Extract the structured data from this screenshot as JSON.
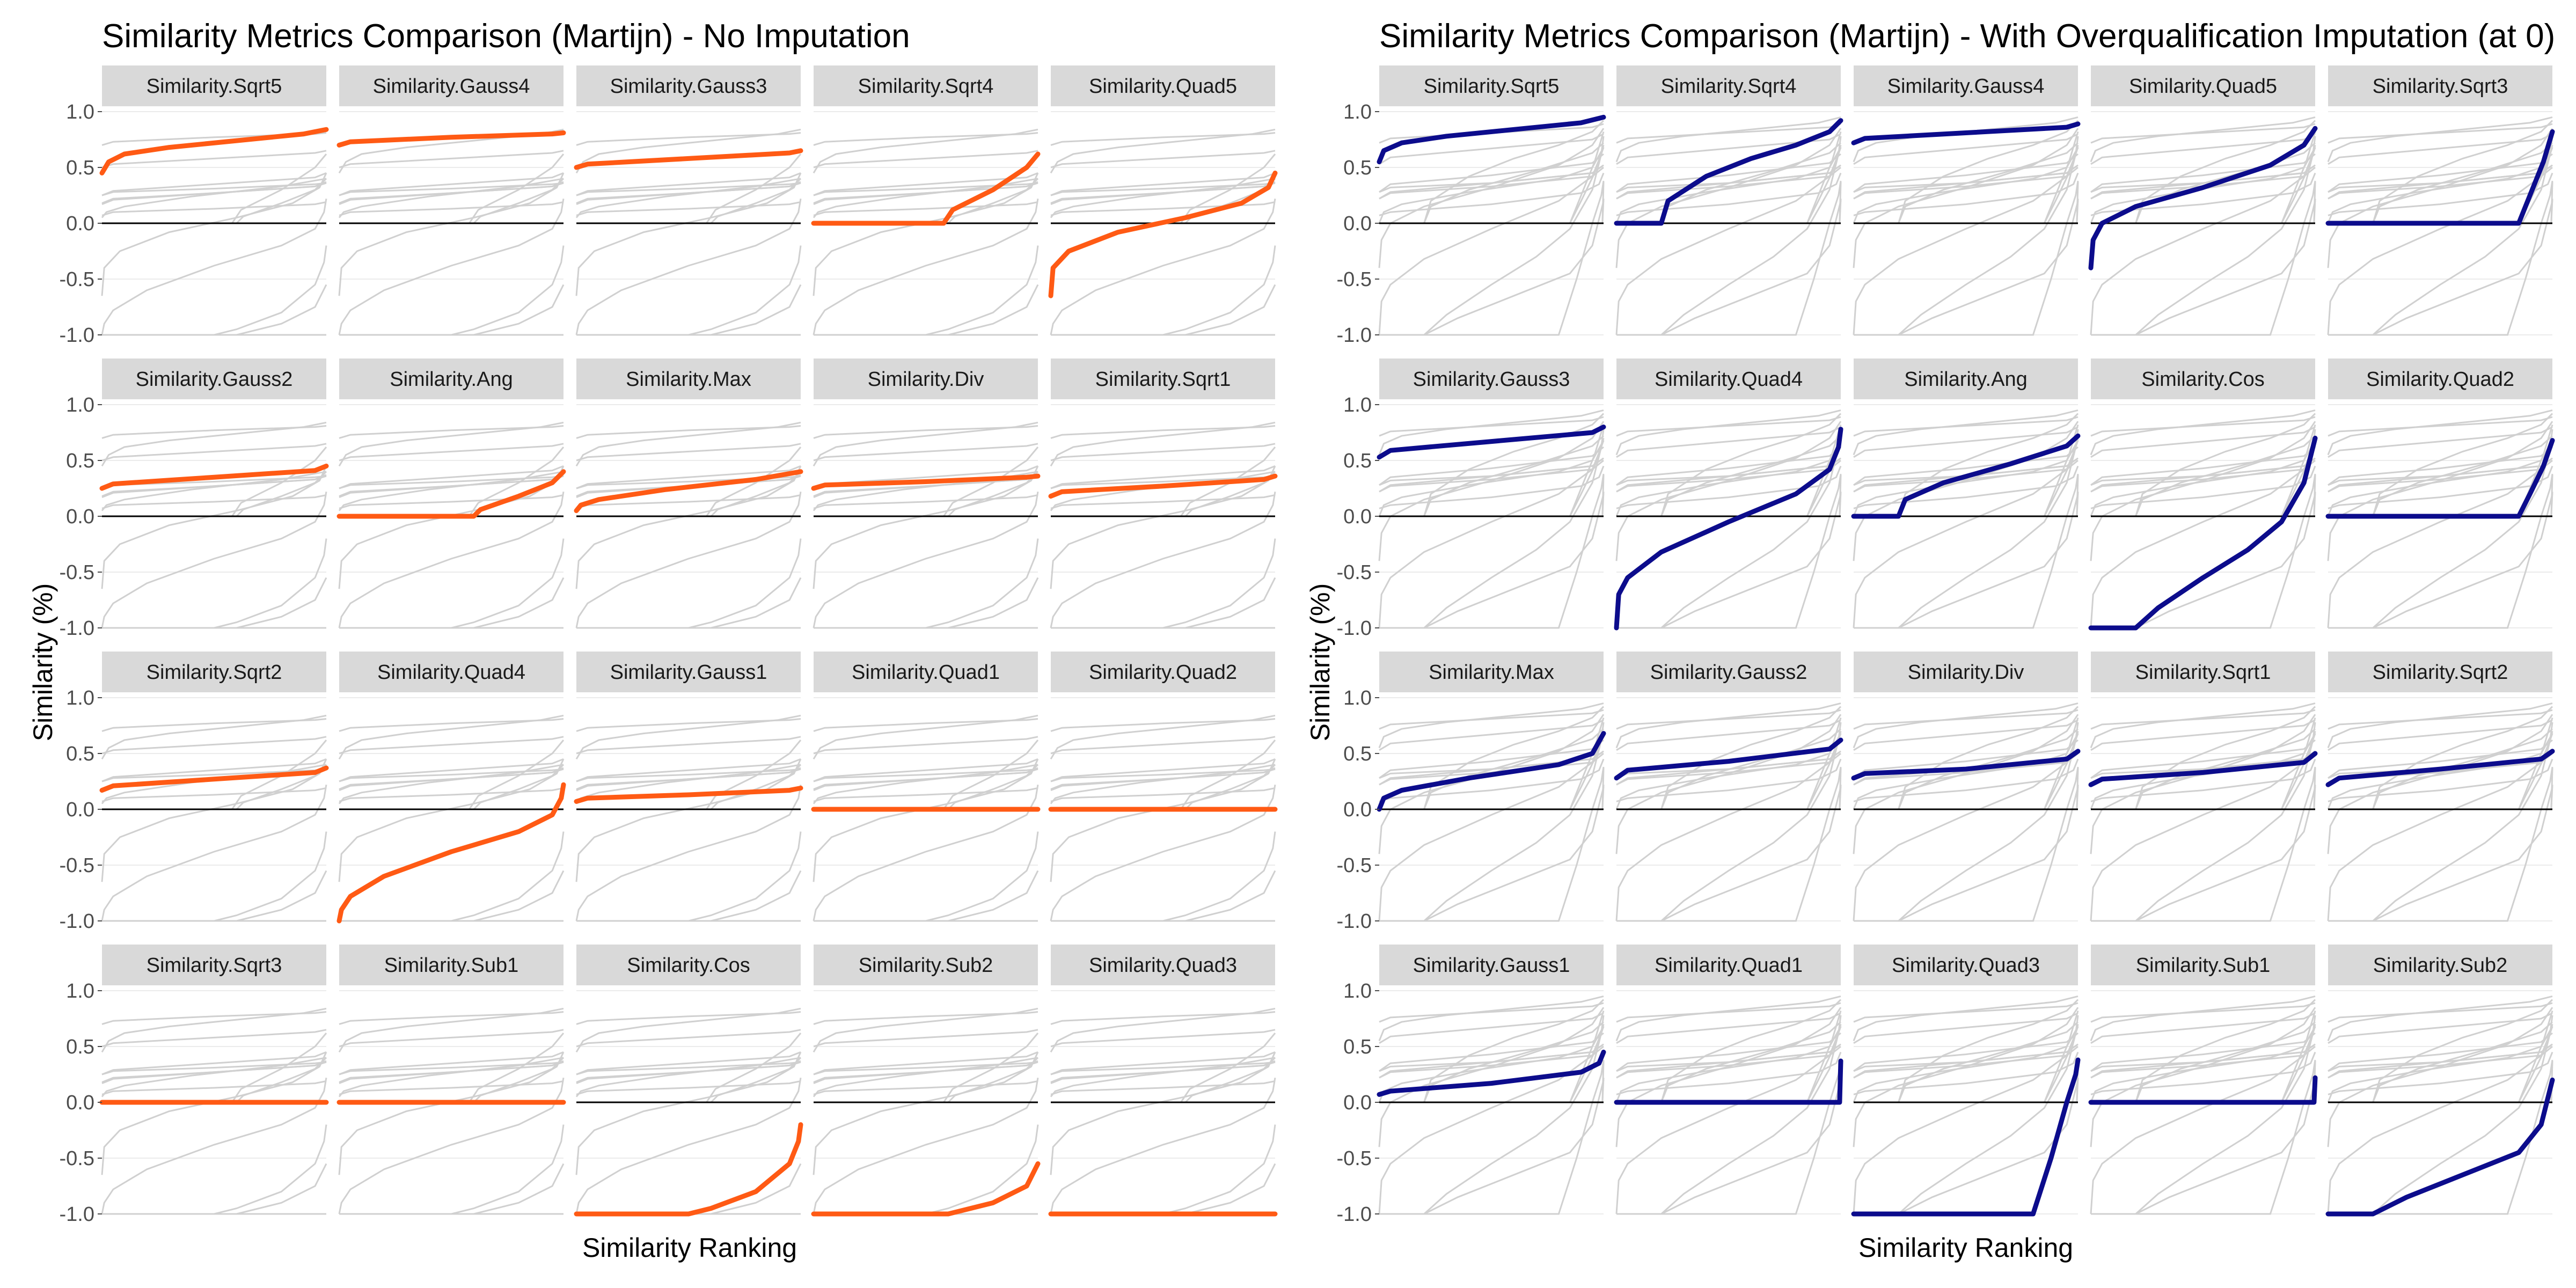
{
  "chart_data": [
    {
      "type": "line",
      "title": "Similarity Metrics Comparison (Martijn) - No Imputation",
      "xlabel": "Similarity Ranking",
      "ylabel": "Similarity (%)",
      "ylim": [
        -1.0,
        1.0
      ],
      "yticks": [
        "1.0",
        "0.5",
        "0.0",
        "-0.5",
        "-1.0"
      ],
      "highlight_color": "#ff5a14",
      "background_line_color": "#d0d0d0",
      "strip_color": "#d9d9d9",
      "zero_line": true,
      "panels": [
        {
          "name": "Similarity.Sqrt5",
          "x": [
            0,
            0.03,
            0.1,
            0.3,
            0.6,
            0.9,
            1
          ],
          "y": [
            0.45,
            0.55,
            0.62,
            0.68,
            0.74,
            0.8,
            0.84
          ]
        },
        {
          "name": "Similarity.Gauss4",
          "x": [
            0,
            0.05,
            0.5,
            0.95,
            1
          ],
          "y": [
            0.7,
            0.73,
            0.77,
            0.8,
            0.81
          ]
        },
        {
          "name": "Similarity.Gauss3",
          "x": [
            0,
            0.05,
            0.5,
            0.95,
            1
          ],
          "y": [
            0.5,
            0.53,
            0.58,
            0.63,
            0.65
          ]
        },
        {
          "name": "Similarity.Sqrt4",
          "x": [
            0,
            0.58,
            0.62,
            0.8,
            0.95,
            1
          ],
          "y": [
            0,
            0,
            0.12,
            0.3,
            0.5,
            0.62
          ]
        },
        {
          "name": "Similarity.Quad5",
          "x": [
            0,
            0.01,
            0.08,
            0.3,
            0.6,
            0.85,
            0.97,
            1
          ],
          "y": [
            -0.65,
            -0.4,
            -0.25,
            -0.08,
            0.05,
            0.18,
            0.32,
            0.45
          ]
        },
        {
          "name": "Similarity.Gauss2",
          "x": [
            0,
            0.05,
            0.5,
            0.95,
            1
          ],
          "y": [
            0.25,
            0.29,
            0.35,
            0.41,
            0.45
          ]
        },
        {
          "name": "Similarity.Ang",
          "x": [
            0,
            0.6,
            0.63,
            0.8,
            0.95,
            1
          ],
          "y": [
            0,
            0,
            0.06,
            0.18,
            0.3,
            0.4
          ]
        },
        {
          "name": "Similarity.Max",
          "x": [
            0,
            0.02,
            0.1,
            0.4,
            0.8,
            1
          ],
          "y": [
            0.05,
            0.1,
            0.15,
            0.24,
            0.33,
            0.4
          ]
        },
        {
          "name": "Similarity.Div",
          "x": [
            0,
            0.05,
            0.5,
            0.95,
            1
          ],
          "y": [
            0.25,
            0.28,
            0.31,
            0.35,
            0.36
          ]
        },
        {
          "name": "Similarity.Sqrt1",
          "x": [
            0,
            0.05,
            0.5,
            0.95,
            1
          ],
          "y": [
            0.18,
            0.22,
            0.27,
            0.33,
            0.36
          ]
        },
        {
          "name": "Similarity.Sqrt2",
          "x": [
            0,
            0.05,
            0.5,
            0.95,
            1
          ],
          "y": [
            0.17,
            0.21,
            0.27,
            0.33,
            0.37
          ]
        },
        {
          "name": "Similarity.Quad4",
          "x": [
            0,
            0.01,
            0.05,
            0.2,
            0.5,
            0.8,
            0.95,
            0.99,
            1
          ],
          "y": [
            -1.0,
            -0.9,
            -0.78,
            -0.6,
            -0.38,
            -0.2,
            -0.05,
            0.1,
            0.22
          ]
        },
        {
          "name": "Similarity.Gauss1",
          "x": [
            0,
            0.05,
            0.5,
            0.95,
            1
          ],
          "y": [
            0.07,
            0.1,
            0.13,
            0.17,
            0.19
          ]
        },
        {
          "name": "Similarity.Quad1",
          "x": [
            0,
            1
          ],
          "y": [
            0,
            0
          ]
        },
        {
          "name": "Similarity.Quad2",
          "x": [
            0,
            1
          ],
          "y": [
            0,
            0
          ]
        },
        {
          "name": "Similarity.Sqrt3",
          "x": [
            0,
            1
          ],
          "y": [
            0,
            0
          ]
        },
        {
          "name": "Similarity.Sub1",
          "x": [
            0,
            1
          ],
          "y": [
            0,
            0
          ]
        },
        {
          "name": "Similarity.Cos",
          "x": [
            0,
            0.5,
            0.6,
            0.8,
            0.95,
            0.99,
            1
          ],
          "y": [
            -1.0,
            -1.0,
            -0.95,
            -0.8,
            -0.55,
            -0.35,
            -0.2
          ]
        },
        {
          "name": "Similarity.Sub2",
          "x": [
            0,
            0.6,
            0.8,
            0.95,
            1
          ],
          "y": [
            -1.0,
            -1.0,
            -0.9,
            -0.75,
            -0.55
          ]
        },
        {
          "name": "Similarity.Quad3",
          "x": [
            0,
            1
          ],
          "y": [
            -1.0,
            -1.0
          ]
        }
      ]
    },
    {
      "type": "line",
      "title": "Similarity Metrics Comparison (Martijn) - With Overqualification Imputation (at 0)",
      "xlabel": "Similarity Ranking",
      "ylabel": "Similarity (%)",
      "ylim": [
        -1.0,
        1.0
      ],
      "yticks": [
        "1.0",
        "0.5",
        "0.0",
        "-0.5",
        "-1.0"
      ],
      "highlight_color": "#0c0c8c",
      "background_line_color": "#d0d0d0",
      "strip_color": "#d9d9d9",
      "zero_line": true,
      "panels": [
        {
          "name": "Similarity.Sqrt5",
          "x": [
            0,
            0.02,
            0.1,
            0.3,
            0.6,
            0.9,
            1
          ],
          "y": [
            0.55,
            0.65,
            0.72,
            0.78,
            0.84,
            0.9,
            0.95
          ]
        },
        {
          "name": "Similarity.Sqrt4",
          "x": [
            0,
            0.2,
            0.23,
            0.4,
            0.6,
            0.8,
            0.95,
            1
          ],
          "y": [
            0,
            0,
            0.2,
            0.42,
            0.58,
            0.7,
            0.82,
            0.92
          ]
        },
        {
          "name": "Similarity.Gauss4",
          "x": [
            0,
            0.05,
            0.5,
            0.95,
            1
          ],
          "y": [
            0.72,
            0.76,
            0.81,
            0.86,
            0.89
          ]
        },
        {
          "name": "Similarity.Quad5",
          "x": [
            0,
            0.01,
            0.05,
            0.2,
            0.5,
            0.8,
            0.95,
            1
          ],
          "y": [
            -0.4,
            -0.15,
            0.0,
            0.15,
            0.32,
            0.52,
            0.7,
            0.85
          ]
        },
        {
          "name": "Similarity.Sqrt3",
          "x": [
            0,
            0.85,
            0.9,
            0.96,
            1
          ],
          "y": [
            0,
            0,
            0.25,
            0.55,
            0.82
          ]
        },
        {
          "name": "Similarity.Gauss3",
          "x": [
            0,
            0.05,
            0.5,
            0.95,
            1
          ],
          "y": [
            0.53,
            0.59,
            0.67,
            0.75,
            0.8
          ]
        },
        {
          "name": "Similarity.Quad4",
          "x": [
            0,
            0.01,
            0.05,
            0.2,
            0.5,
            0.8,
            0.95,
            0.99,
            1
          ],
          "y": [
            -1.0,
            -0.7,
            -0.55,
            -0.32,
            -0.05,
            0.2,
            0.42,
            0.62,
            0.78
          ]
        },
        {
          "name": "Similarity.Ang",
          "x": [
            0,
            0.2,
            0.23,
            0.4,
            0.7,
            0.95,
            1
          ],
          "y": [
            0,
            0,
            0.15,
            0.3,
            0.47,
            0.63,
            0.72
          ]
        },
        {
          "name": "Similarity.Cos",
          "x": [
            0,
            0.2,
            0.3,
            0.5,
            0.7,
            0.85,
            0.95,
            1
          ],
          "y": [
            -1.0,
            -1.0,
            -0.82,
            -0.55,
            -0.3,
            -0.05,
            0.3,
            0.7
          ]
        },
        {
          "name": "Similarity.Quad2",
          "x": [
            0,
            0.85,
            0.9,
            0.96,
            1
          ],
          "y": [
            0,
            0,
            0.2,
            0.45,
            0.68
          ]
        },
        {
          "name": "Similarity.Max",
          "x": [
            0,
            0.02,
            0.1,
            0.4,
            0.8,
            0.95,
            1
          ],
          "y": [
            0.0,
            0.1,
            0.17,
            0.28,
            0.4,
            0.5,
            0.68
          ]
        },
        {
          "name": "Similarity.Gauss2",
          "x": [
            0,
            0.05,
            0.5,
            0.95,
            1
          ],
          "y": [
            0.28,
            0.35,
            0.43,
            0.54,
            0.62
          ]
        },
        {
          "name": "Similarity.Div",
          "x": [
            0,
            0.05,
            0.5,
            0.95,
            1
          ],
          "y": [
            0.28,
            0.32,
            0.36,
            0.45,
            0.52
          ]
        },
        {
          "name": "Similarity.Sqrt1",
          "x": [
            0,
            0.05,
            0.5,
            0.95,
            1
          ],
          "y": [
            0.22,
            0.27,
            0.33,
            0.42,
            0.5
          ]
        },
        {
          "name": "Similarity.Sqrt2",
          "x": [
            0,
            0.05,
            0.5,
            0.95,
            1
          ],
          "y": [
            0.22,
            0.28,
            0.36,
            0.45,
            0.52
          ]
        },
        {
          "name": "Similarity.Gauss1",
          "x": [
            0,
            0.05,
            0.5,
            0.9,
            0.98,
            1
          ],
          "y": [
            0.07,
            0.1,
            0.17,
            0.27,
            0.35,
            0.45
          ]
        },
        {
          "name": "Similarity.Quad1",
          "x": [
            0,
            0.995,
            1
          ],
          "y": [
            0,
            0,
            0.37
          ]
        },
        {
          "name": "Similarity.Quad3",
          "x": [
            0,
            0.8,
            0.88,
            0.95,
            0.99,
            1
          ],
          "y": [
            -1.0,
            -1.0,
            -0.5,
            0.0,
            0.25,
            0.38
          ]
        },
        {
          "name": "Similarity.Sub1",
          "x": [
            0,
            0.995,
            1
          ],
          "y": [
            0,
            0,
            0.22
          ]
        },
        {
          "name": "Similarity.Sub2",
          "x": [
            0,
            0.2,
            0.35,
            0.6,
            0.85,
            0.95,
            1
          ],
          "y": [
            -1.0,
            -1.0,
            -0.85,
            -0.65,
            -0.45,
            -0.2,
            0.2
          ]
        }
      ]
    }
  ]
}
